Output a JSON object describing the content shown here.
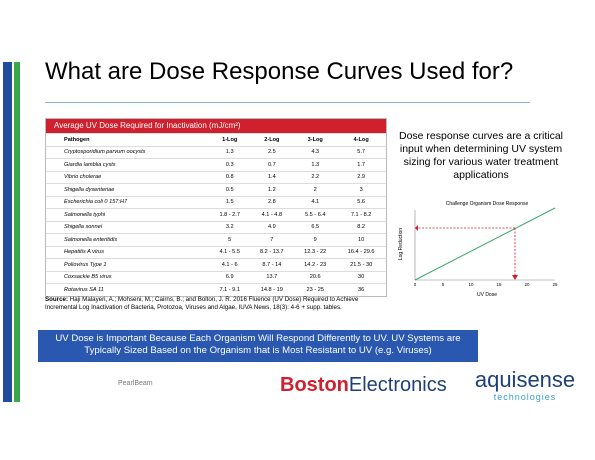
{
  "header": {
    "title": "What are Dose Response Curves Used for?"
  },
  "table": {
    "title": "Average UV Dose Required for Inactivation (mJ/cm²)",
    "columns": [
      "Pathogen",
      "1-Log",
      "2-Log",
      "3-Log",
      "4-Log"
    ],
    "rows": [
      [
        "Cryptosporidium parvum oocysts",
        "1.3",
        "2.5",
        "4.3",
        "5.7"
      ],
      [
        "Giardia lamblia cysts",
        "0.3",
        "0.7",
        "1.3",
        "1.7"
      ],
      [
        "Vibrio cholerae",
        "0.8",
        "1.4",
        "2.2",
        "2.9"
      ],
      [
        "Shigella dysenteriae",
        "0.5",
        "1.2",
        "2",
        "3"
      ],
      [
        "Escherichia coli 0 157:H7",
        "1.5",
        "2.8",
        "4.1",
        "5.6"
      ],
      [
        "Salmonella typhi",
        "1.8 - 2.7",
        "4.1 - 4.8",
        "5.5 - 6.4",
        "7.1 - 8.2"
      ],
      [
        "Shigella sonnei",
        "3.2",
        "4.9",
        "6.5",
        "8.2"
      ],
      [
        "Salmonella enteritidis",
        "5",
        "7",
        "9",
        "10"
      ],
      [
        "Hepatitis A virus",
        "4.1 - 5.5",
        "8.2 - 13.7",
        "12.3 - 22",
        "16.4 - 29.6"
      ],
      [
        "Poliovirus Type 1",
        "4.1 - 6",
        "8.7 - 14",
        "14.2 - 23",
        "21.5 - 30"
      ],
      [
        "Coxsackie B5 virus",
        "6.9",
        "13.7",
        "20.6",
        "30"
      ],
      [
        "Rotavirus SA 11",
        "7.1 - 9.1",
        "14.8 - 19",
        "23 - 25",
        "36"
      ]
    ]
  },
  "source": {
    "label": "Source:",
    "text": "Haji Malayeri, A.; Mohseni, M.; Cairns, B.; and Bolton, J. R. 2016 Fluence (UV Dose) Required to Achieve Incremental Log Inactivation of Bacteria, Protozoa, Viruses and Algae, IUVA News, 18(3): 4-6 + supp. tables."
  },
  "side_text": "Dose response curves are a critical input when determining UV system sizing for various water treatment applications",
  "mini_chart": {
    "title": "Challenge Organism Dose Response",
    "x_label": "UV Dose",
    "y_label": "Log Reduction",
    "xticks": [
      0,
      5,
      10,
      15,
      20,
      25
    ]
  },
  "banner": "UV Dose is Important Because Each Organism Will Respond Differently to UV.  UV Systems are Typically Sized Based on the Organism that is Most Resistant to UV (e.g. Viruses)",
  "footer": {
    "left": "PearlBeam",
    "logo1_a": "Boston",
    "logo1_b": "Electronics",
    "logo2_a": "aquisense",
    "logo2_b": "technologies"
  }
}
